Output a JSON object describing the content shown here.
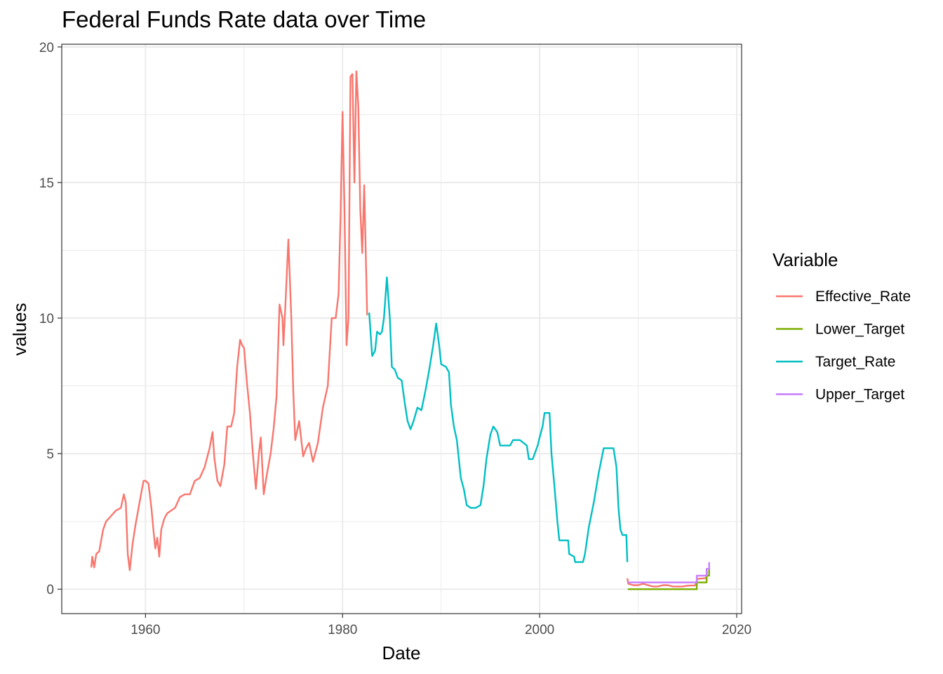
{
  "chart_data": {
    "type": "line",
    "title": "Federal Funds Rate data over Time",
    "xlabel": "Date",
    "ylabel": "values",
    "xlim": [
      1951.5,
      2020.5
    ],
    "ylim": [
      -0.9,
      20.1
    ],
    "x_ticks": [
      1960,
      1980,
      2000,
      2020
    ],
    "y_ticks": [
      0,
      5,
      10,
      15,
      20
    ],
    "grid": true,
    "legend": {
      "title": "Variable",
      "position": "right"
    },
    "series": [
      {
        "name": "Effective_Rate",
        "color": "#F8766D",
        "points": [
          [
            1954.5,
            0.8
          ],
          [
            1954.6,
            1.2
          ],
          [
            1954.8,
            0.8
          ],
          [
            1955.0,
            1.3
          ],
          [
            1955.3,
            1.4
          ],
          [
            1955.7,
            2.2
          ],
          [
            1956.0,
            2.5
          ],
          [
            1956.5,
            2.7
          ],
          [
            1957.0,
            2.9
          ],
          [
            1957.5,
            3.0
          ],
          [
            1957.8,
            3.5
          ],
          [
            1958.0,
            3.2
          ],
          [
            1958.2,
            1.3
          ],
          [
            1958.4,
            0.7
          ],
          [
            1958.7,
            1.7
          ],
          [
            1959.0,
            2.4
          ],
          [
            1959.5,
            3.4
          ],
          [
            1959.8,
            4.0
          ],
          [
            1960.0,
            4.0
          ],
          [
            1960.3,
            3.9
          ],
          [
            1960.6,
            3.0
          ],
          [
            1960.8,
            2.2
          ],
          [
            1961.0,
            1.5
          ],
          [
            1961.2,
            1.9
          ],
          [
            1961.4,
            1.2
          ],
          [
            1961.6,
            2.2
          ],
          [
            1961.9,
            2.6
          ],
          [
            1962.2,
            2.8
          ],
          [
            1962.6,
            2.9
          ],
          [
            1963.0,
            3.0
          ],
          [
            1963.5,
            3.4
          ],
          [
            1964.0,
            3.5
          ],
          [
            1964.5,
            3.5
          ],
          [
            1965.0,
            4.0
          ],
          [
            1965.5,
            4.1
          ],
          [
            1966.0,
            4.5
          ],
          [
            1966.5,
            5.2
          ],
          [
            1966.8,
            5.8
          ],
          [
            1967.0,
            4.8
          ],
          [
            1967.3,
            4.0
          ],
          [
            1967.6,
            3.8
          ],
          [
            1968.0,
            4.6
          ],
          [
            1968.3,
            6.0
          ],
          [
            1968.7,
            6.0
          ],
          [
            1969.0,
            6.5
          ],
          [
            1969.3,
            8.2
          ],
          [
            1969.6,
            9.2
          ],
          [
            1969.8,
            9.0
          ],
          [
            1970.0,
            8.9
          ],
          [
            1970.3,
            7.6
          ],
          [
            1970.6,
            6.5
          ],
          [
            1970.9,
            5.0
          ],
          [
            1971.2,
            3.7
          ],
          [
            1971.5,
            5.0
          ],
          [
            1971.7,
            5.6
          ],
          [
            1972.0,
            3.5
          ],
          [
            1972.3,
            4.2
          ],
          [
            1972.7,
            5.0
          ],
          [
            1973.0,
            5.9
          ],
          [
            1973.3,
            7.1
          ],
          [
            1973.6,
            10.5
          ],
          [
            1973.9,
            10.0
          ],
          [
            1974.0,
            9.0
          ],
          [
            1974.2,
            10.5
          ],
          [
            1974.5,
            12.9
          ],
          [
            1974.8,
            10.0
          ],
          [
            1975.0,
            7.3
          ],
          [
            1975.2,
            5.5
          ],
          [
            1975.6,
            6.2
          ],
          [
            1976.0,
            4.9
          ],
          [
            1976.3,
            5.2
          ],
          [
            1976.6,
            5.4
          ],
          [
            1977.0,
            4.7
          ],
          [
            1977.5,
            5.4
          ],
          [
            1978.0,
            6.7
          ],
          [
            1978.5,
            7.5
          ],
          [
            1978.9,
            10.0
          ],
          [
            1979.3,
            10.0
          ],
          [
            1979.6,
            10.9
          ],
          [
            1979.8,
            13.8
          ],
          [
            1980.0,
            17.6
          ],
          [
            1980.2,
            14.0
          ],
          [
            1980.4,
            9.0
          ],
          [
            1980.6,
            10.0
          ],
          [
            1980.8,
            18.9
          ],
          [
            1981.0,
            19.0
          ],
          [
            1981.2,
            15.0
          ],
          [
            1981.4,
            19.1
          ],
          [
            1981.6,
            17.8
          ],
          [
            1981.8,
            14.0
          ],
          [
            1982.0,
            12.4
          ],
          [
            1982.2,
            14.9
          ],
          [
            1982.5,
            10.1
          ]
        ]
      },
      {
        "name": "Target_Rate",
        "color": "#00BFC4",
        "points": [
          [
            1982.7,
            10.2
          ],
          [
            1983.0,
            8.6
          ],
          [
            1983.3,
            8.8
          ],
          [
            1983.5,
            9.5
          ],
          [
            1983.8,
            9.4
          ],
          [
            1984.0,
            9.5
          ],
          [
            1984.2,
            10.0
          ],
          [
            1984.5,
            11.5
          ],
          [
            1984.8,
            10.0
          ],
          [
            1985.0,
            8.2
          ],
          [
            1985.3,
            8.1
          ],
          [
            1985.6,
            7.8
          ],
          [
            1986.0,
            7.7
          ],
          [
            1986.3,
            6.9
          ],
          [
            1986.6,
            6.2
          ],
          [
            1986.9,
            5.9
          ],
          [
            1987.2,
            6.2
          ],
          [
            1987.6,
            6.7
          ],
          [
            1988.0,
            6.6
          ],
          [
            1988.4,
            7.3
          ],
          [
            1988.8,
            8.1
          ],
          [
            1989.2,
            9.0
          ],
          [
            1989.5,
            9.8
          ],
          [
            1989.8,
            9.0
          ],
          [
            1990.0,
            8.3
          ],
          [
            1990.5,
            8.2
          ],
          [
            1990.8,
            8.0
          ],
          [
            1991.0,
            6.8
          ],
          [
            1991.3,
            6.0
          ],
          [
            1991.6,
            5.5
          ],
          [
            1992.0,
            4.1
          ],
          [
            1992.3,
            3.7
          ],
          [
            1992.6,
            3.1
          ],
          [
            1993.0,
            3.0
          ],
          [
            1993.5,
            3.0
          ],
          [
            1994.0,
            3.1
          ],
          [
            1994.3,
            3.8
          ],
          [
            1994.6,
            4.8
          ],
          [
            1995.0,
            5.7
          ],
          [
            1995.3,
            6.0
          ],
          [
            1995.7,
            5.8
          ],
          [
            1996.0,
            5.3
          ],
          [
            1996.5,
            5.3
          ],
          [
            1997.0,
            5.3
          ],
          [
            1997.3,
            5.5
          ],
          [
            1998.0,
            5.5
          ],
          [
            1998.7,
            5.3
          ],
          [
            1998.9,
            4.8
          ],
          [
            1999.3,
            4.8
          ],
          [
            1999.8,
            5.3
          ],
          [
            2000.0,
            5.6
          ],
          [
            2000.3,
            6.0
          ],
          [
            2000.5,
            6.5
          ],
          [
            2001.0,
            6.5
          ],
          [
            2001.2,
            5.0
          ],
          [
            2001.5,
            3.8
          ],
          [
            2001.8,
            2.5
          ],
          [
            2002.0,
            1.8
          ],
          [
            2002.9,
            1.8
          ],
          [
            2003.0,
            1.3
          ],
          [
            2003.5,
            1.2
          ],
          [
            2003.6,
            1.0
          ],
          [
            2004.4,
            1.0
          ],
          [
            2004.6,
            1.3
          ],
          [
            2005.0,
            2.3
          ],
          [
            2005.5,
            3.2
          ],
          [
            2006.0,
            4.3
          ],
          [
            2006.5,
            5.2
          ],
          [
            2007.5,
            5.2
          ],
          [
            2007.8,
            4.5
          ],
          [
            2008.0,
            3.0
          ],
          [
            2008.2,
            2.2
          ],
          [
            2008.4,
            2.0
          ],
          [
            2008.8,
            2.0
          ],
          [
            2008.9,
            1.0
          ]
        ]
      },
      {
        "name": "Effective_Rate",
        "color": "#F8766D",
        "points": [
          [
            2008.9,
            0.4
          ],
          [
            2009.0,
            0.2
          ],
          [
            2009.5,
            0.15
          ],
          [
            2010.0,
            0.15
          ],
          [
            2010.5,
            0.2
          ],
          [
            2011.0,
            0.15
          ],
          [
            2011.5,
            0.1
          ],
          [
            2012.0,
            0.1
          ],
          [
            2012.5,
            0.15
          ],
          [
            2013.0,
            0.15
          ],
          [
            2013.5,
            0.1
          ],
          [
            2014.0,
            0.1
          ],
          [
            2014.5,
            0.1
          ],
          [
            2015.0,
            0.13
          ],
          [
            2015.8,
            0.14
          ],
          [
            2016.0,
            0.38
          ],
          [
            2016.9,
            0.41
          ],
          [
            2017.0,
            0.66
          ]
        ]
      },
      {
        "name": "Lower_Target",
        "color": "#7CAE00",
        "points": [
          [
            2008.95,
            0
          ],
          [
            2015.95,
            0
          ],
          [
            2015.95,
            0.25
          ],
          [
            2016.95,
            0.25
          ],
          [
            2016.95,
            0.5
          ],
          [
            2017.2,
            0.5
          ],
          [
            2017.2,
            0.75
          ]
        ]
      },
      {
        "name": "Upper_Target",
        "color": "#C77CFF",
        "points": [
          [
            2008.95,
            0.25
          ],
          [
            2015.95,
            0.25
          ],
          [
            2015.95,
            0.5
          ],
          [
            2016.95,
            0.5
          ],
          [
            2016.95,
            0.75
          ],
          [
            2017.2,
            0.75
          ],
          [
            2017.2,
            1.0
          ]
        ]
      }
    ],
    "legend_entries": [
      {
        "name": "Effective_Rate",
        "color": "#F8766D"
      },
      {
        "name": "Lower_Target",
        "color": "#7CAE00"
      },
      {
        "name": "Target_Rate",
        "color": "#00BFC4"
      },
      {
        "name": "Upper_Target",
        "color": "#C77CFF"
      }
    ]
  }
}
